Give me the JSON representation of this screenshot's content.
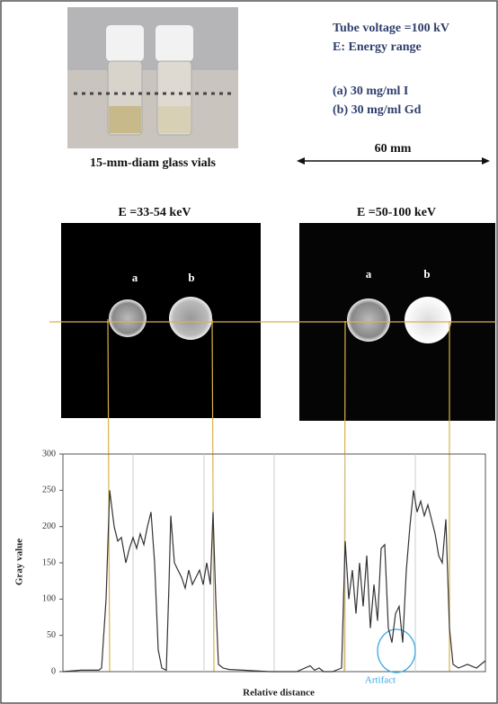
{
  "figure": {
    "settings": [
      "Tube voltage =100 kV",
      "E: Energy range"
    ],
    "samples": [
      "(a) 30 mg/ml I",
      "(b) 30 mg/ml Gd"
    ],
    "photo_caption": "15-mm-diam glass vials",
    "scale_label": "60 mm",
    "panels": [
      {
        "title": "E =33-54 keV",
        "labels": [
          "a",
          "b"
        ]
      },
      {
        "title": "E =50-100 keV",
        "labels": [
          "a",
          "b"
        ]
      }
    ]
  },
  "chart_data": {
    "type": "line",
    "ylabel": "Gray value",
    "xlabel": "Relative distance",
    "annotation": "Artifact",
    "color": "#333333",
    "xlim": [
      0,
      470
    ],
    "ylim": [
      0,
      300
    ],
    "yticks": [
      0,
      50,
      100,
      150,
      200,
      250,
      300
    ],
    "x": [
      0,
      20,
      40,
      43,
      48,
      52,
      57,
      61,
      65,
      70,
      74,
      78,
      82,
      86,
      90,
      94,
      98,
      102,
      106,
      110,
      115,
      118,
      120,
      124,
      128,
      132,
      136,
      140,
      144,
      148,
      152,
      156,
      160,
      164,
      167,
      170,
      173,
      178,
      185,
      200,
      230,
      260,
      275,
      280,
      285,
      290,
      300,
      310,
      314,
      318,
      322,
      326,
      330,
      334,
      338,
      342,
      346,
      350,
      354,
      358,
      362,
      366,
      370,
      374,
      378,
      382,
      386,
      390,
      394,
      398,
      402,
      406,
      410,
      414,
      418,
      422,
      426,
      430,
      434,
      440,
      450,
      460,
      470
    ],
    "values": [
      0,
      2,
      2,
      5,
      100,
      250,
      200,
      180,
      185,
      150,
      170,
      185,
      170,
      190,
      175,
      200,
      220,
      150,
      30,
      5,
      2,
      120,
      215,
      150,
      140,
      130,
      115,
      140,
      120,
      130,
      140,
      120,
      150,
      120,
      220,
      100,
      10,
      5,
      3,
      2,
      0,
      0,
      8,
      2,
      5,
      0,
      0,
      5,
      180,
      100,
      140,
      80,
      150,
      90,
      160,
      60,
      120,
      70,
      170,
      175,
      60,
      40,
      80,
      90,
      40,
      140,
      200,
      250,
      220,
      235,
      215,
      230,
      210,
      190,
      160,
      150,
      210,
      60,
      10,
      5,
      10,
      5,
      15
    ]
  }
}
